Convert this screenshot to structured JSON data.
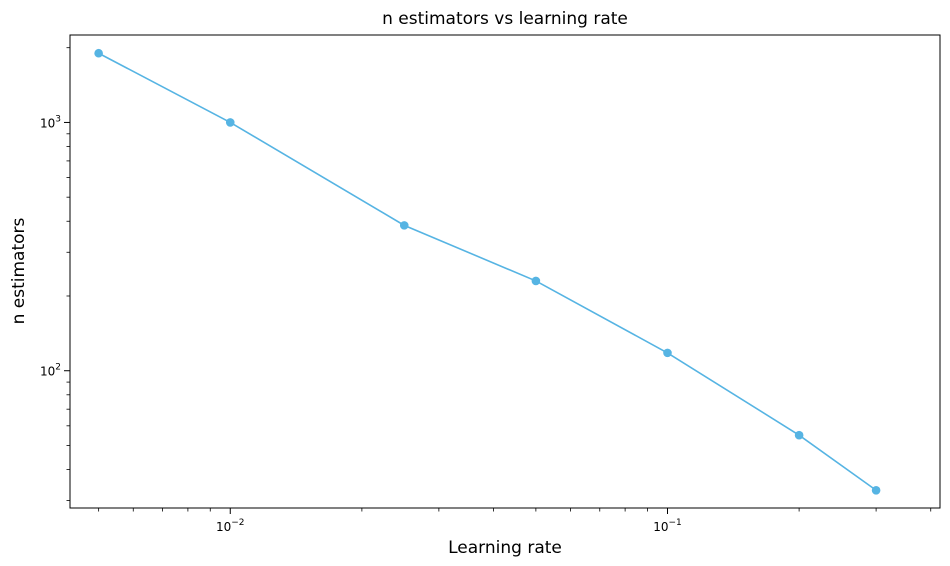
{
  "chart_data": {
    "type": "line",
    "title": "n estimators vs learning rate",
    "xlabel": "Learning rate",
    "ylabel": "n estimators",
    "xscale": "log",
    "yscale": "log",
    "xlim": [
      0.0043,
      0.42
    ],
    "ylim": [
      28,
      2250
    ],
    "grid": false,
    "color": "#56b4e3",
    "x_major_ticks": [
      {
        "value": 0.01,
        "base": "10",
        "exp": "−2"
      },
      {
        "value": 0.1,
        "base": "10",
        "exp": "−1"
      }
    ],
    "y_major_ticks": [
      {
        "value": 100,
        "base": "10",
        "exp": "2"
      },
      {
        "value": 1000,
        "base": "10",
        "exp": "3"
      }
    ],
    "x": [
      0.005,
      0.01,
      0.025,
      0.05,
      0.1,
      0.2,
      0.3
    ],
    "y": [
      1900,
      1000,
      385,
      230,
      118,
      55,
      33
    ]
  }
}
